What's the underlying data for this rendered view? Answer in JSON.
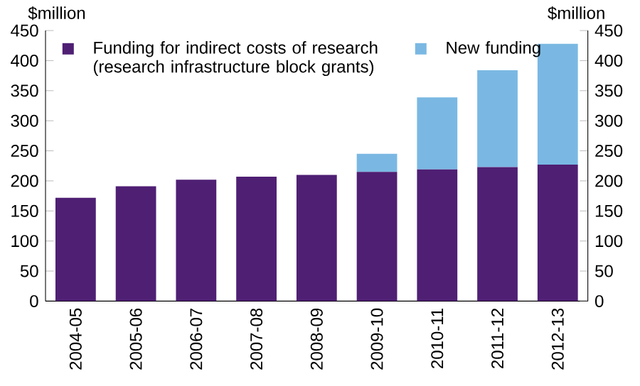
{
  "chart_data": {
    "type": "bar",
    "stacked": true,
    "legend": "top left",
    "grid": false,
    "ylabel": "$million",
    "y2label": "$million",
    "categories": [
      "2004-05",
      "2005-06",
      "2006-07",
      "2007-08",
      "2008-09",
      "2009-10",
      "2010-11",
      "2011-12",
      "2012-13"
    ],
    "series": [
      {
        "name": "Funding for indirect costs of research (research infrastructure block grants)",
        "color": "#4f1f74",
        "values": [
          172,
          191,
          202,
          207,
          210,
          215,
          219,
          223,
          227
        ]
      },
      {
        "name": "New funding",
        "color": "#7ab8e3",
        "values": [
          null,
          null,
          null,
          null,
          null,
          30,
          120,
          161,
          201
        ]
      }
    ],
    "ylim": [
      0,
      450
    ],
    "yticks": [
      0,
      50,
      100,
      150,
      200,
      250,
      300,
      350,
      400,
      450
    ],
    "y2lim": [
      0,
      450
    ],
    "y2ticks": [
      0,
      50,
      100,
      150,
      200,
      250,
      300,
      350,
      400,
      450
    ]
  }
}
